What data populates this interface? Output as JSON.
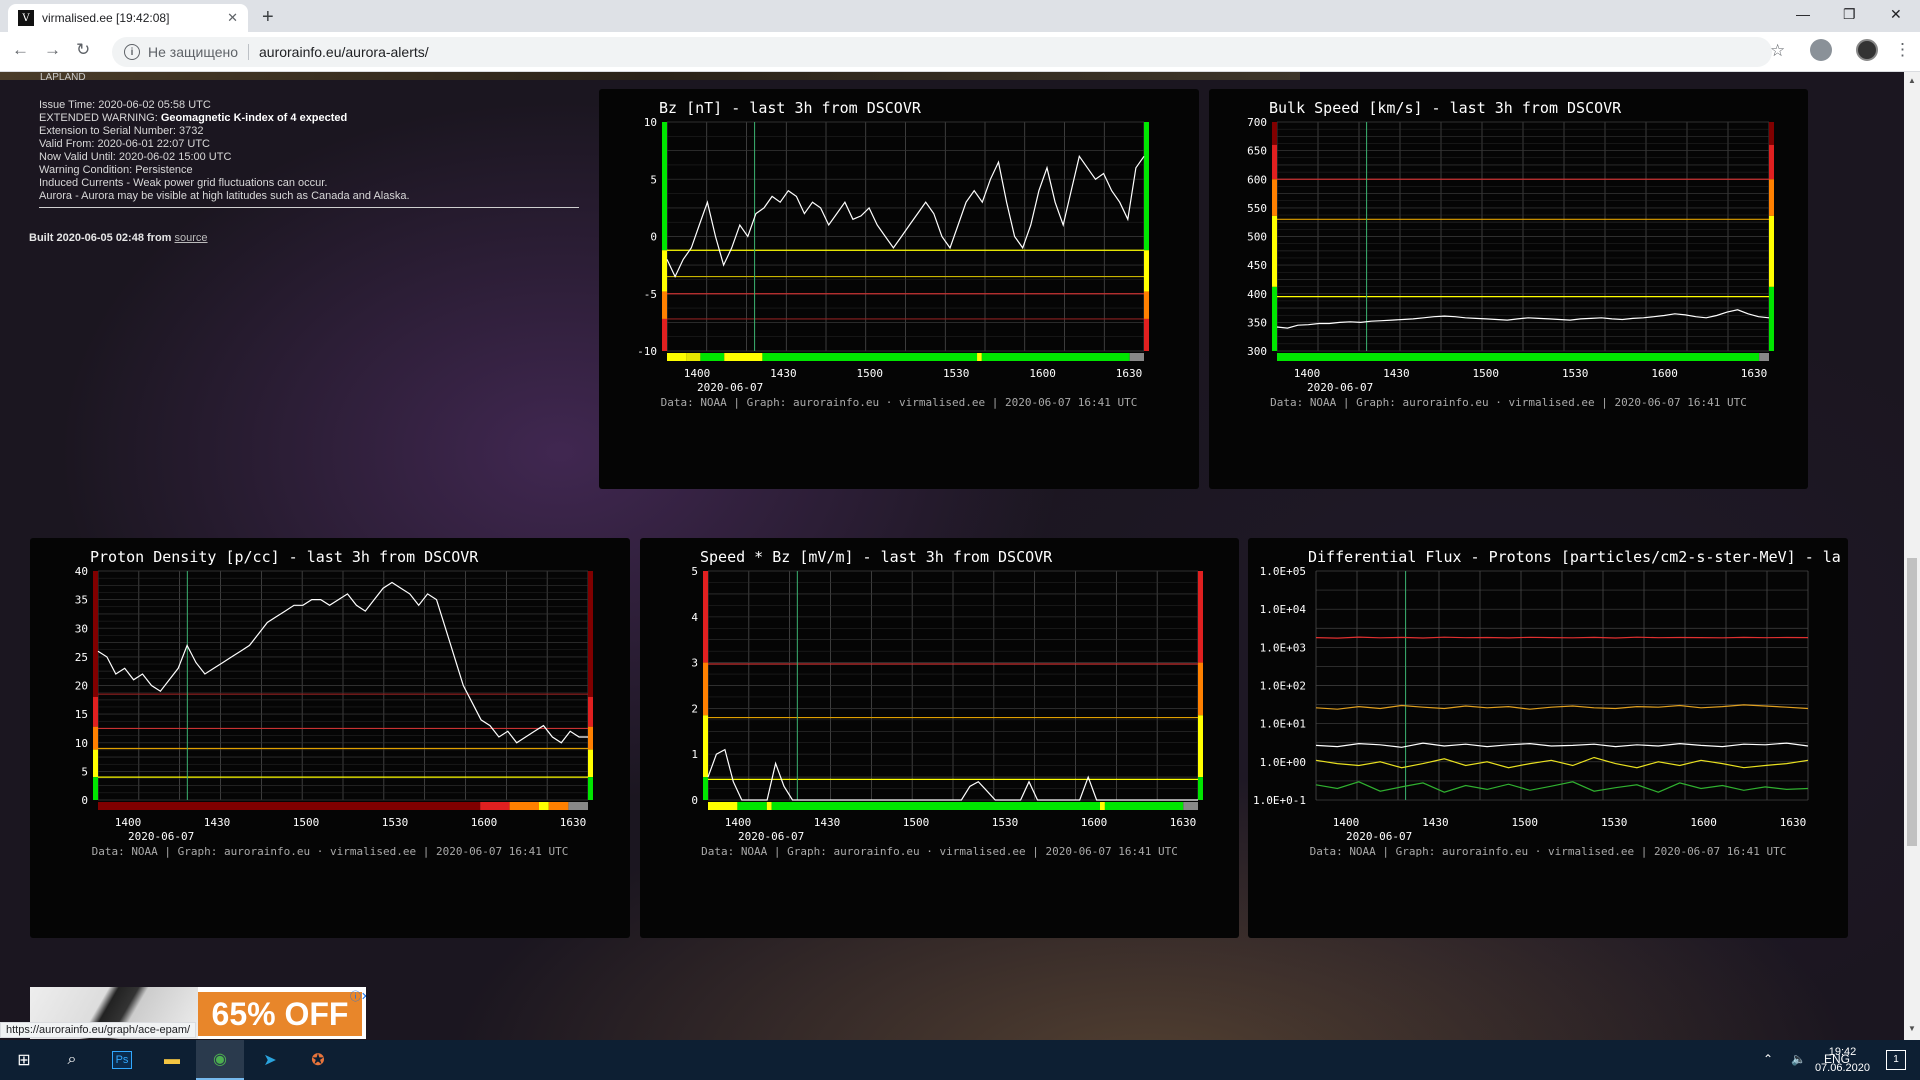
{
  "browser": {
    "tab_title": "virmalised.ee [19:42:08]",
    "favicon_text": "V",
    "security_label": "Не защищено",
    "url": "aurorainfo.eu/aurora-alerts/",
    "status_url": "https://aurorainfo.eu/graph/ace-epam/"
  },
  "page": {
    "banner_label": "LAPLAND",
    "alert": {
      "issue_time": "Issue Time: 2020-06-02 05:58 UTC",
      "warning_prefix": "EXTENDED WARNING: ",
      "warning_bold": "Geomagnetic K-index of 4 expected",
      "extension": "Extension to Serial Number: 3732",
      "valid_from": "Valid From: 2020-06-01 22:07 UTC",
      "valid_until": "Now Valid Until: 2020-06-02 15:00 UTC",
      "condition": "Warning Condition: Persistence",
      "induced": "Induced Currents - Weak power grid fluctuations can occur.",
      "aurora": "Aurora - Aurora may be visible at high latitudes such as Canada and Alaska."
    },
    "built_text": "Built 2020-06-05 02:48 from ",
    "built_link": "source"
  },
  "chart_data": [
    {
      "type": "line",
      "title": "Bz [nT] - last 3h from DSCOVR",
      "x_ticks": [
        "1400",
        "1430",
        "1500",
        "1530",
        "1600",
        "1630"
      ],
      "date_label": "2020-06-07",
      "y_ticks": [
        10,
        5,
        0,
        -5,
        -10
      ],
      "ylim": [
        -10,
        10
      ],
      "reference_lines": [
        {
          "value": -1.2,
          "color": "#ffff00"
        },
        {
          "value": -3.5,
          "color": "#c8b400"
        },
        {
          "value": -5,
          "color": "#c83232"
        },
        {
          "value": -7.2,
          "color": "#8c2020"
        }
      ],
      "marker_x": "1420",
      "series": [
        {
          "values": [
            -2,
            -3.5,
            -2,
            -1,
            1,
            3,
            0,
            -2.5,
            -1,
            1,
            0,
            2,
            2.5,
            3.5,
            3,
            4,
            3.5,
            2,
            3,
            2.5,
            1,
            2,
            3,
            1.5,
            1.8,
            2.5,
            1,
            0,
            -1,
            0,
            1,
            2,
            3,
            2,
            0,
            -1,
            1,
            3,
            4,
            3,
            5,
            6.5,
            3,
            0,
            -1,
            1,
            4,
            6,
            3,
            1,
            4,
            7,
            6,
            5,
            5.5,
            4,
            3,
            1.5,
            6,
            7
          ]
        }
      ],
      "footer": "Data: NOAA | Graph: aurorainfo.eu · virmalised.ee | 2020-06-07 16:41 UTC"
    },
    {
      "type": "line",
      "title": "Bulk Speed [km/s] - last 3h from DSCOVR",
      "x_ticks": [
        "1400",
        "1430",
        "1500",
        "1530",
        "1600",
        "1630"
      ],
      "date_label": "2020-06-07",
      "y_ticks": [
        700,
        650,
        600,
        550,
        500,
        450,
        400,
        350,
        300
      ],
      "ylim": [
        300,
        700
      ],
      "reference_lines": [
        {
          "value": 600,
          "color": "#c83232"
        },
        {
          "value": 530,
          "color": "#e0a000"
        },
        {
          "value": 395,
          "color": "#ffff00"
        }
      ],
      "marker_x": "1420",
      "series": [
        {
          "values": [
            342,
            340,
            345,
            346,
            348,
            348,
            350,
            351,
            350,
            352,
            353,
            354,
            355,
            356,
            358,
            360,
            361,
            360,
            358,
            357,
            356,
            355,
            354,
            356,
            358,
            357,
            356,
            355,
            354,
            356,
            357,
            358,
            356,
            355,
            357,
            358,
            360,
            362,
            365,
            363,
            360,
            358,
            362,
            368,
            372,
            365,
            360,
            358
          ]
        }
      ],
      "footer": "Data: NOAA | Graph: aurorainfo.eu · virmalised.ee | 2020-06-07 16:41 UTC"
    },
    {
      "type": "line",
      "title": "Proton Density [p/cc] - last 3h from DSCOVR",
      "x_ticks": [
        "1400",
        "1430",
        "1500",
        "1530",
        "1600",
        "1630"
      ],
      "date_label": "2020-06-07",
      "y_ticks": [
        40,
        35,
        30,
        25,
        20,
        15,
        10,
        5,
        0
      ],
      "ylim": [
        0,
        40
      ],
      "reference_lines": [
        {
          "value": 18.5,
          "color": "#8c2020"
        },
        {
          "value": 12.5,
          "color": "#c83232"
        },
        {
          "value": 9,
          "color": "#e0a000"
        },
        {
          "value": 4,
          "color": "#ffff00"
        }
      ],
      "marker_x": "1420",
      "series": [
        {
          "values": [
            26,
            25,
            22,
            23,
            21,
            22,
            20,
            19,
            21,
            23,
            27,
            24,
            22,
            23,
            24,
            25,
            26,
            27,
            29,
            31,
            32,
            33,
            34,
            34,
            35,
            35,
            34,
            35,
            36,
            34,
            33,
            35,
            37,
            38,
            37,
            36,
            34,
            36,
            35,
            30,
            25,
            20,
            17,
            14,
            13,
            11,
            12,
            10,
            11,
            12,
            13,
            11,
            10,
            12,
            11,
            11
          ]
        }
      ],
      "footer": "Data: NOAA | Graph: aurorainfo.eu · virmalised.ee | 2020-06-07 16:41 UTC"
    },
    {
      "type": "line",
      "title": "Speed * Bz [mV/m] - last 3h from DSCOVR",
      "x_ticks": [
        "1400",
        "1430",
        "1500",
        "1530",
        "1600",
        "1630"
      ],
      "date_label": "2020-06-07",
      "y_ticks": [
        5,
        4,
        3,
        2,
        1,
        0
      ],
      "ylim": [
        0,
        5
      ],
      "reference_lines": [
        {
          "value": 2.97,
          "color": "#c83232"
        },
        {
          "value": 1.8,
          "color": "#e0a000"
        },
        {
          "value": 0.45,
          "color": "#ffff00"
        }
      ],
      "marker_x": "1420",
      "series": [
        {
          "values": [
            0.5,
            1.0,
            1.1,
            0.4,
            0,
            0,
            0,
            0,
            0.8,
            0.3,
            0,
            0,
            0,
            0,
            0,
            0,
            0,
            0,
            0,
            0,
            0,
            0,
            0,
            0,
            0,
            0,
            0,
            0,
            0,
            0,
            0,
            0.3,
            0.4,
            0.2,
            0,
            0,
            0,
            0,
            0.4,
            0,
            0,
            0,
            0,
            0,
            0,
            0.5,
            0,
            0,
            0,
            0,
            0,
            0,
            0,
            0,
            0,
            0,
            0,
            0,
            0
          ]
        }
      ],
      "footer": "Data: NOAA | Graph: aurorainfo.eu · virmalised.ee | 2020-06-07 16:41 UTC"
    },
    {
      "type": "line",
      "title": "Differential Flux - Protons [particles/cm2-s-ster-MeV]  - la",
      "x_ticks": [
        "1400",
        "1430",
        "1500",
        "1530",
        "1600",
        "1630"
      ],
      "date_label": "2020-06-07",
      "y_ticks": [
        "1.0E+05",
        "1.0E+04",
        "1.0E+03",
        "1.0E+02",
        "1.0E+01",
        "1.0E+00",
        "1.0E+0-1"
      ],
      "y_scale": "log",
      "ylim": [
        0.1,
        100000
      ],
      "marker_x": "1420",
      "series": [
        {
          "color": "#e03030",
          "values": [
            1800,
            1750,
            1850,
            1780,
            1820,
            1760,
            1840,
            1790,
            1810,
            1770,
            1830,
            1800,
            1780,
            1820,
            1760,
            1840,
            1790,
            1810,
            1800,
            1780,
            1820,
            1790,
            1810,
            1800
          ]
        },
        {
          "color": "#e0a020",
          "values": [
            26,
            24,
            28,
            25,
            30,
            27,
            25,
            29,
            26,
            28,
            24,
            27,
            29,
            26,
            25,
            28,
            27,
            30,
            26,
            28,
            31,
            29,
            27,
            25
          ]
        },
        {
          "color": "#ffffff",
          "values": [
            2.7,
            2.5,
            3.0,
            2.8,
            2.4,
            3.1,
            2.6,
            2.9,
            2.5,
            2.8,
            3.0,
            2.6,
            2.7,
            2.9,
            2.5,
            2.8,
            2.6,
            3.0,
            2.7,
            2.5,
            2.9,
            2.8,
            3.1,
            2.6
          ]
        },
        {
          "color": "#e8e020",
          "values": [
            1.1,
            0.9,
            0.8,
            1.0,
            0.7,
            0.9,
            1.2,
            0.8,
            1.0,
            0.7,
            0.9,
            1.1,
            0.8,
            1.3,
            0.9,
            0.7,
            1.0,
            0.8,
            1.1,
            0.9,
            0.7,
            0.8,
            0.9,
            1.1
          ]
        },
        {
          "color": "#30b030",
          "values": [
            0.25,
            0.2,
            0.3,
            0.17,
            0.22,
            0.28,
            0.16,
            0.24,
            0.19,
            0.26,
            0.18,
            0.23,
            0.3,
            0.17,
            0.21,
            0.25,
            0.16,
            0.28,
            0.2,
            0.24,
            0.18,
            0.22,
            0.19,
            0.2
          ]
        }
      ],
      "footer": "Data: NOAA | Graph: aurorainfo.eu · virmalised.ee | 2020-06-07 16:41 UTC"
    }
  ],
  "ad": {
    "headline": "65% OFF",
    "close_icon": "close-icon"
  },
  "taskbar": {
    "lang": "ENG",
    "time": "19:42",
    "date": "07.06.2020",
    "notifications": "1"
  },
  "colors": {
    "accent_green": "#00e600",
    "alert_red": "#c83232",
    "warn_yellow": "#ffff00"
  }
}
